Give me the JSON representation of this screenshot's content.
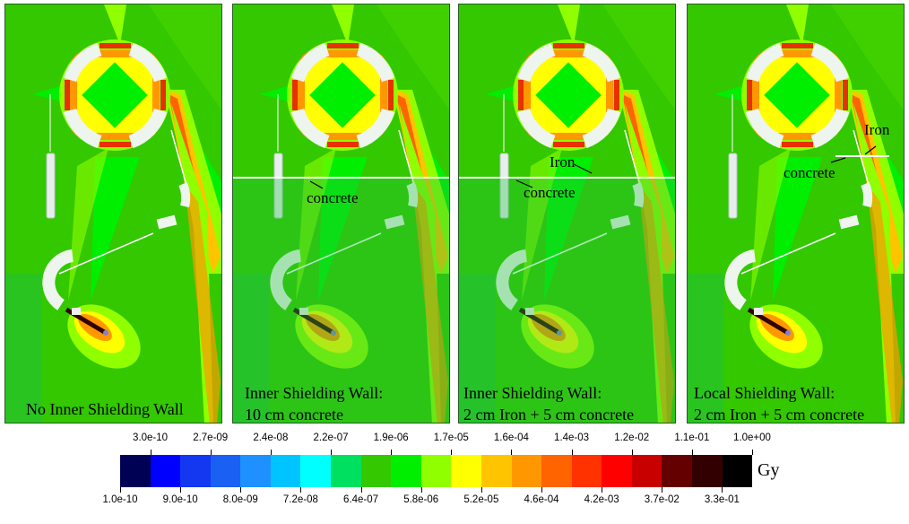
{
  "panels": [
    {
      "label_lines": [
        "No Inner Shielding Wall"
      ],
      "wall": "none",
      "annotations": []
    },
    {
      "label_lines": [
        "Inner  Shielding Wall:",
        "10 cm concrete"
      ],
      "wall": "full",
      "annotations": [
        "concrete"
      ]
    },
    {
      "label_lines": [
        "Inner Shielding Wall:",
        "2 cm Iron + 5 cm concrete"
      ],
      "wall": "full",
      "annotations": [
        "Iron",
        "concrete"
      ]
    },
    {
      "label_lines": [
        "Local Shielding Wall:",
        "2 cm Iron + 5 cm concrete"
      ],
      "wall": "local",
      "annotations": [
        "Iron",
        "concrete"
      ]
    }
  ],
  "colorbar": {
    "unit": "Gy",
    "colors": [
      "#000055",
      "#0000ff",
      "#1438f0",
      "#1a60f2",
      "#1e90ff",
      "#00c4ff",
      "#00ffff",
      "#00e060",
      "#33c800",
      "#00ee00",
      "#90ff00",
      "#ffff00",
      "#ffc400",
      "#ff9800",
      "#ff6400",
      "#ff3200",
      "#ff0000",
      "#c80000",
      "#640000",
      "#320000",
      "#000000"
    ],
    "top_ticks": [
      "3.0e-10",
      "2.7e-09",
      "2.4e-08",
      "2.2e-07",
      "1.9e-06",
      "1.7e-05",
      "1.6e-04",
      "1.4e-03",
      "1.2e-02",
      "1.1e-01",
      "1.0e+00"
    ],
    "bottom_ticks": [
      "1.0e-10",
      "9.0e-10",
      "8.0e-09",
      "7.2e-08",
      "6.4e-07",
      "5.8e-06",
      "5.2e-05",
      "4.6e-04",
      "4.2e-03",
      "3.7e-02",
      "3.3e-01"
    ]
  }
}
